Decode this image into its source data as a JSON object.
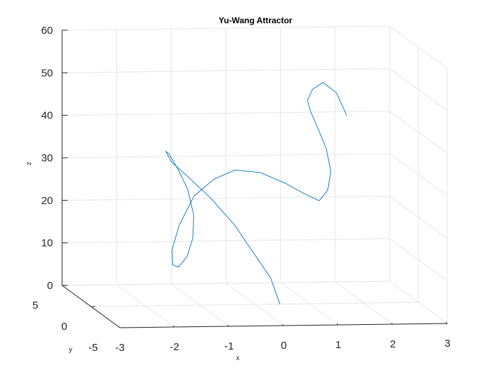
{
  "chart_data": {
    "type": "line",
    "title": "Yu-Wang Attractor",
    "xlabel": "x",
    "ylabel": "y",
    "zlabel": "z",
    "xlim": [
      -3,
      3
    ],
    "ylim": [
      -5,
      5
    ],
    "zlim": [
      0,
      60
    ],
    "x_ticks": [
      "-3",
      "-2",
      "-1",
      "0",
      "1",
      "2",
      "3"
    ],
    "y_ticks": [
      "-5",
      "0",
      "5"
    ],
    "z_ticks": [
      "0",
      "10",
      "20",
      "30",
      "40",
      "50",
      "60"
    ],
    "grid": true,
    "view": "3d",
    "series": [
      {
        "color": "#0072BD",
        "description": "chaotic trajectory with two lobes",
        "x": [
          0.25,
          0.1,
          -0.2,
          -0.5,
          -0.9,
          -1.3,
          -1.55,
          -1.6,
          -1.5,
          -1.3,
          -1.1,
          -1.0,
          -1.05,
          -1.2,
          -1.4,
          -1.55,
          -1.6,
          -1.5,
          -1.25,
          -0.9,
          -0.5,
          0.0,
          0.5,
          0.9,
          1.2,
          1.4,
          1.5,
          1.45,
          1.3,
          1.15,
          1.05,
          1.1,
          1.25,
          1.45,
          1.6
        ],
        "y": [
          -2,
          -1.8,
          -1.5,
          -1.2,
          -0.9,
          -0.6,
          -0.2,
          0.3,
          0.7,
          1.0,
          1.2,
          1.1,
          0.8,
          0.4,
          0.0,
          -0.4,
          -0.8,
          -1.1,
          -1.3,
          -1.4,
          -1.3,
          -1.0,
          -0.6,
          -0.2,
          0.2,
          0.6,
          1.0,
          1.3,
          1.4,
          1.2,
          0.8,
          0.4,
          0.0,
          -0.4,
          -0.8
        ],
        "z": [
          2,
          8,
          14,
          20,
          26,
          31,
          34,
          36,
          35,
          31,
          26,
          20,
          15,
          11,
          9,
          10,
          14,
          20,
          27,
          31,
          33,
          32,
          29,
          26,
          24,
          26,
          30,
          35,
          40,
          44,
          47,
          50,
          52,
          50,
          45
        ]
      }
    ]
  }
}
